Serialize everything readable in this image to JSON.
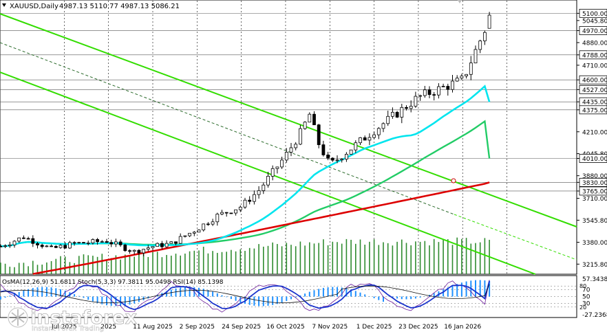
{
  "chart_data": [
    {
      "type": "candlestick",
      "header": {
        "symbol": "XAUUSD,Daily",
        "ohlc": "4987.13 5110.77 4987.13 5086.21"
      },
      "y_axis_labels": [
        "5100.00",
        "5045.80",
        "4970.00",
        "4880.00",
        "4788.00",
        "4710.00",
        "4600.00",
        "4527.00",
        "4435.00",
        "4375.00",
        "4210.00",
        "4045.80",
        "4010.00",
        "3880.00",
        "3830.00",
        "3765.00",
        "3710.00",
        "3545.80",
        "3380.00",
        "3215.80"
      ],
      "highlighted_levels": [
        "5100.00",
        "4970.00",
        "4788.00",
        "4600.00",
        "4527.00",
        "4435.00",
        "4375.00",
        "4010.00",
        "3830.00",
        "3765.00"
      ],
      "x_axis_labels": [
        "11 Aug 2025",
        "2 Sep 2025",
        "24 Sep 2025",
        "16 Oct 2025",
        "7 Nov 2025",
        "1 Dec 2025",
        "23 Dec 2025",
        "16 Jan 2026"
      ],
      "x_axis_partial": [
        "Jul 2025",
        "2025"
      ],
      "ylim": [
        3140,
        5200
      ],
      "anchors": [
        {
          "x": "16 Oct 2025",
          "close": 4250
        },
        {
          "x": "7 Nov 2025",
          "close": 4000
        },
        {
          "x": "1 Dec 2025",
          "close": 4220
        },
        {
          "x": "23 Dec 2025",
          "close": 4470
        },
        {
          "x": "16 Jan 2026",
          "close": 4600
        },
        {
          "x": "last",
          "close": 5086.21
        }
      ],
      "moving_averages": [
        {
          "color": "#00e5ee",
          "last": 4435
        },
        {
          "color": "#22cc66",
          "last": 4010
        },
        {
          "color": "#dd0000",
          "last": 3830
        }
      ],
      "channel_color": "#33dd00"
    },
    {
      "type": "line",
      "label": "OsMA(12,26,9) 51.6811  Stoch(5,3,3) 97.3811 95.0498  RSI(14) 85.1398",
      "axis_labels": [
        "57.3438",
        "70",
        "50",
        "30",
        "-27.2368"
      ],
      "small_labels": [
        "80",
        "20"
      ],
      "last": {
        "stoch_k": 97.3811,
        "stoch_d": 95.0498,
        "rsi": 85.1398,
        "osma": 51.6811
      }
    }
  ],
  "watermark": {
    "brand": "instaforex",
    "tagline": "Instant Forex Trading"
  },
  "colors": {
    "candle": "#000000",
    "ma_fast": "#00e5ee",
    "ma_mid": "#22cc66",
    "ma_slow": "#dd0000",
    "channel": "#33dd00",
    "volume": "#2e8b2e",
    "osma": "#1e90ff",
    "stoch_k": "#6a1b9a",
    "stoch_d": "#1a33cc"
  }
}
